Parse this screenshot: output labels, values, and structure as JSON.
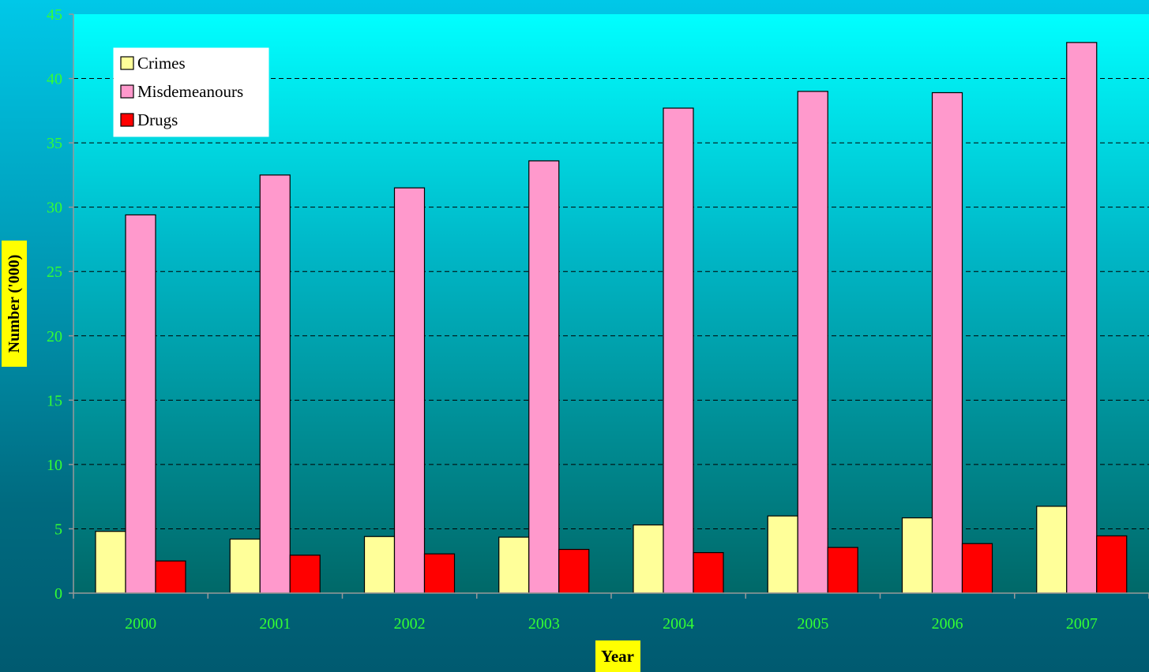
{
  "chart_data": {
    "type": "bar",
    "title": "",
    "xlabel": "Year",
    "ylabel": "Number ('000)",
    "categories": [
      "2000",
      "2001",
      "2002",
      "2003",
      "2004",
      "2005",
      "2006",
      "2007"
    ],
    "ylim": [
      0,
      45
    ],
    "yticks": [
      0,
      5,
      10,
      15,
      20,
      25,
      30,
      35,
      40,
      45
    ],
    "grid": true,
    "legend_position": "top-left",
    "series": [
      {
        "name": "Crimes",
        "color": "#ffff99",
        "values": [
          4.8,
          4.2,
          4.4,
          4.35,
          5.3,
          6.0,
          5.85,
          6.75
        ]
      },
      {
        "name": "Misdemeanours",
        "color": "#ff99cc",
        "values": [
          29.4,
          32.5,
          31.5,
          33.6,
          37.7,
          39.0,
          38.9,
          42.8
        ]
      },
      {
        "name": "Drugs",
        "color": "#ff0000",
        "values": [
          2.5,
          2.95,
          3.05,
          3.4,
          3.15,
          3.55,
          3.85,
          4.45
        ]
      }
    ]
  }
}
